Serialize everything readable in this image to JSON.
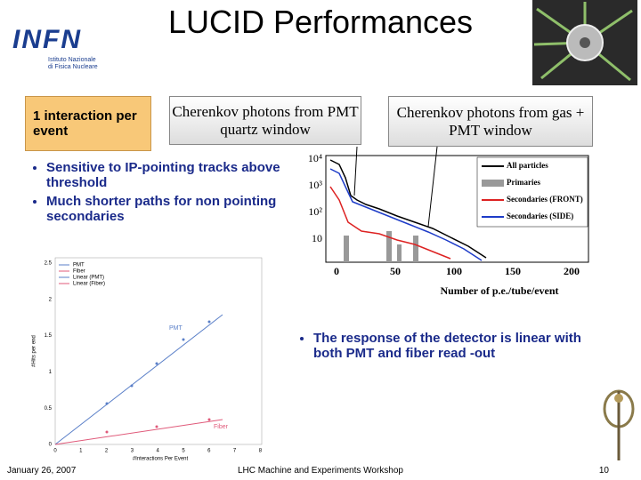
{
  "header": {
    "title": "LUCID Performances",
    "logo": {
      "name": "INFN",
      "subtitle": [
        "Istituto Nazionale",
        "di Fisica Nucleare"
      ]
    }
  },
  "callouts": [
    "1 interaction per event",
    "Cherenkov photons from PMT quartz window",
    "Cherenkov photons from gas + PMT window"
  ],
  "bullets_left": [
    "Sensitive to IP-pointing tracks above threshold",
    "Much shorter paths for non pointing secondaries"
  ],
  "bullets_right": [
    "The response of the detector is linear with both PMT and fiber read -out"
  ],
  "histogram": {
    "yticks": [
      "10⁴",
      "10³",
      "10²",
      "10"
    ],
    "xticks": [
      "0",
      "50",
      "100",
      "150",
      "200"
    ],
    "xlabel": "Number of p.e./tube/event",
    "legend": [
      "All particles",
      "Primaries",
      "Secondaries (FRONT)",
      "Secondaries (SIDE)"
    ]
  },
  "linear_plot": {
    "yticks": [
      "2.5",
      "2",
      "1.5",
      "1",
      "0.5",
      "0"
    ],
    "xticks": [
      "0",
      "1",
      "2",
      "3",
      "4",
      "5",
      "6",
      "7",
      "8"
    ],
    "xlabel": "#Interactions Per Event",
    "ylabel": "#Hits per end",
    "legend": [
      "PMT",
      "Fiber",
      "Linear (PMT)",
      "Linear (Fiber)"
    ],
    "annotations": [
      "PMT",
      "Fiber"
    ]
  },
  "footer": {
    "date": "January 26, 2007",
    "event": "LHC Machine and Experiments Workshop",
    "page": "10"
  }
}
